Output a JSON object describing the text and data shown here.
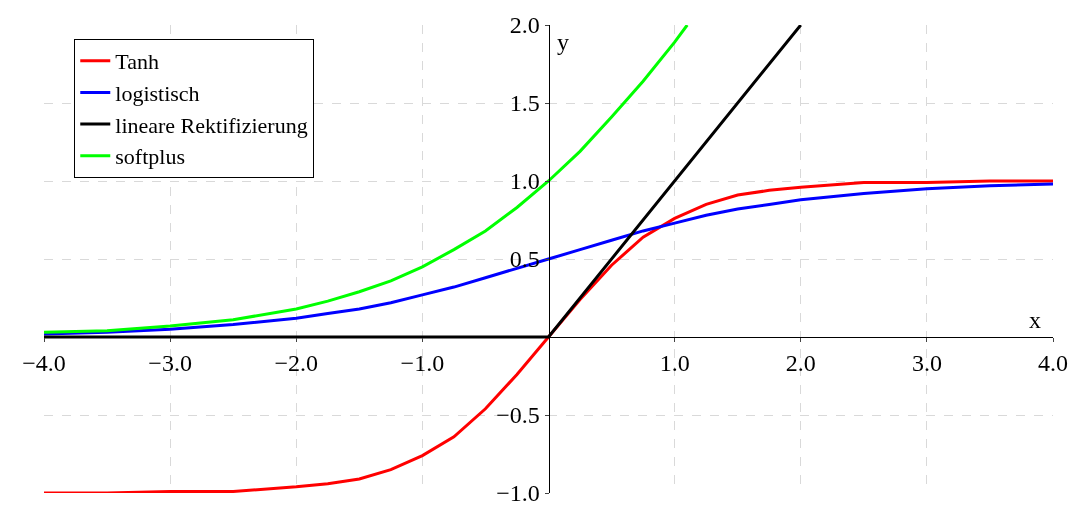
{
  "chart_data": {
    "type": "line",
    "xlabel": "x",
    "ylabel": "y",
    "x": [
      -4,
      -3.5,
      -3,
      -2.5,
      -2,
      -1.75,
      -1.5,
      -1.25,
      -1,
      -0.75,
      -0.5,
      -0.25,
      0,
      0.25,
      0.5,
      0.75,
      1,
      1.25,
      1.5,
      1.75,
      2,
      2.5,
      3,
      3.5,
      4
    ],
    "series": [
      {
        "name": "Tanh",
        "color": "#ff0000",
        "values": [
          -1.0,
          -1.0,
          -0.99,
          -0.99,
          -0.96,
          -0.94,
          -0.91,
          -0.85,
          -0.76,
          -0.64,
          -0.46,
          -0.24,
          0,
          0.24,
          0.46,
          0.64,
          0.76,
          0.85,
          0.91,
          0.94,
          0.96,
          0.99,
          0.99,
          1.0,
          1.0
        ]
      },
      {
        "name": "logistisch",
        "color": "#0000ff",
        "values": [
          0.02,
          0.03,
          0.05,
          0.08,
          0.12,
          0.15,
          0.18,
          0.22,
          0.27,
          0.32,
          0.38,
          0.44,
          0.5,
          0.56,
          0.62,
          0.68,
          0.73,
          0.78,
          0.82,
          0.85,
          0.88,
          0.92,
          0.95,
          0.97,
          0.98
        ]
      },
      {
        "name": "lineare Rektifizierung",
        "color": "#000000",
        "x": [
          -4,
          0,
          2
        ],
        "values": [
          0,
          0,
          2
        ]
      },
      {
        "name": "softplus",
        "color": "#00ff00",
        "x": [
          -4,
          -3.5,
          -3,
          -2.5,
          -2,
          -1.75,
          -1.5,
          -1.25,
          -1,
          -0.75,
          -0.5,
          -0.25,
          0,
          0.25,
          0.5,
          0.75,
          1,
          1.1
        ],
        "values": [
          0.03,
          0.04,
          0.07,
          0.11,
          0.18,
          0.23,
          0.29,
          0.36,
          0.45,
          0.56,
          0.68,
          0.83,
          1.0,
          1.19,
          1.41,
          1.64,
          1.89,
          2.0
        ]
      }
    ],
    "xlim": [
      -4,
      4
    ],
    "xticks": [
      {
        "value": -4,
        "label": "−4.0"
      },
      {
        "value": -3,
        "label": "−3.0"
      },
      {
        "value": -2,
        "label": "−2.0"
      },
      {
        "value": -1,
        "label": "−1.0"
      },
      {
        "value": 1,
        "label": "1.0"
      },
      {
        "value": 2,
        "label": "2.0"
      },
      {
        "value": 3,
        "label": "3.0"
      },
      {
        "value": 4,
        "label": "4.0"
      }
    ],
    "ylim": [
      -1,
      2
    ],
    "yticks": [
      {
        "value": -1,
        "label": "−1.0"
      },
      {
        "value": -0.5,
        "label": "−0.5"
      },
      {
        "value": 0.5,
        "label": "0.5"
      },
      {
        "value": 1,
        "label": "1.0"
      },
      {
        "value": 1.5,
        "label": "1.5"
      },
      {
        "value": 2,
        "label": "2.0"
      }
    ],
    "grid": true,
    "legend": "top left",
    "marker": "none",
    "line_style": "solid"
  }
}
